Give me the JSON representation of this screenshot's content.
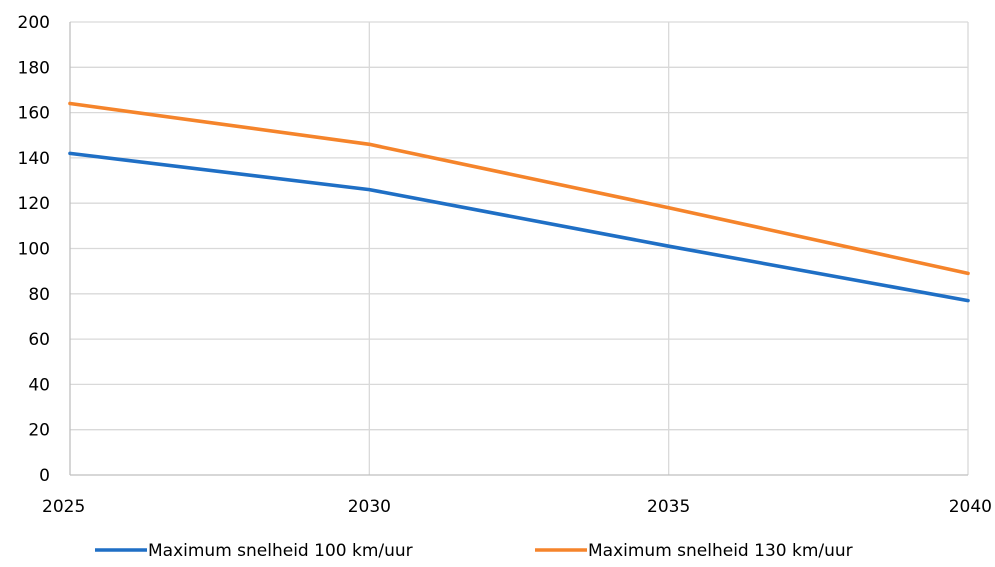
{
  "chart_data": {
    "type": "line",
    "x": [
      2025,
      2030,
      2035,
      2040
    ],
    "x_tick_labels": [
      "2025",
      "2030",
      "2035",
      "2040"
    ],
    "xlim": [
      2025,
      2040
    ],
    "ylim": [
      0,
      200
    ],
    "y_ticks": [
      0,
      20,
      40,
      60,
      80,
      100,
      120,
      140,
      160,
      180,
      200
    ],
    "y_tick_labels": [
      "0",
      "20",
      "40",
      "60",
      "80",
      "100",
      "120",
      "140",
      "160",
      "180",
      "200"
    ],
    "grid": true,
    "legend_position": "bottom",
    "series": [
      {
        "name": "Maximum snelheid 100 km/uur",
        "color": "#1f6fc5",
        "values": [
          142,
          126,
          101,
          77
        ]
      },
      {
        "name": "Maximum snelheid 130 km/uur",
        "color": "#f5842b",
        "values": [
          164,
          146,
          118,
          89
        ]
      }
    ]
  }
}
